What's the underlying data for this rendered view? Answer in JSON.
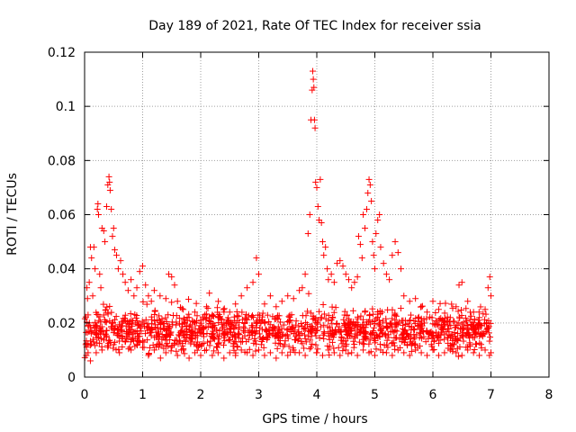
{
  "chart_data": {
    "type": "scatter",
    "title": "Day 189 of 2021, Rate Of TEC Index for receiver ssia",
    "xlabel": "GPS time / hours",
    "ylabel": "ROTI / TECUs",
    "xlim": [
      0,
      8
    ],
    "ylim": [
      0,
      0.12
    ],
    "xticks": [
      "0",
      "1",
      "2",
      "3",
      "4",
      "5",
      "6",
      "7",
      "8"
    ],
    "yticks": [
      "0",
      "0.02",
      "0.04",
      "0.06",
      "0.08",
      "0.1",
      "0.12"
    ],
    "grid": true,
    "marker": "+",
    "color": "#ff0000",
    "series": [
      {
        "name": "ROTI",
        "points": [
          [
            0.02,
            0.012
          ],
          [
            0.04,
            0.033
          ],
          [
            0.05,
            0.029
          ],
          [
            0.06,
            0.009
          ],
          [
            0.08,
            0.035
          ],
          [
            0.1,
            0.048
          ],
          [
            0.12,
            0.044
          ],
          [
            0.14,
            0.03
          ],
          [
            0.16,
            0.048
          ],
          [
            0.18,
            0.04
          ],
          [
            0.2,
            0.018
          ],
          [
            0.22,
            0.062
          ],
          [
            0.23,
            0.064
          ],
          [
            0.24,
            0.06
          ],
          [
            0.26,
            0.038
          ],
          [
            0.28,
            0.033
          ],
          [
            0.3,
            0.055
          ],
          [
            0.33,
            0.054
          ],
          [
            0.35,
            0.05
          ],
          [
            0.38,
            0.063
          ],
          [
            0.4,
            0.071
          ],
          [
            0.42,
            0.074
          ],
          [
            0.43,
            0.072
          ],
          [
            0.44,
            0.069
          ],
          [
            0.46,
            0.062
          ],
          [
            0.48,
            0.052
          ],
          [
            0.5,
            0.055
          ],
          [
            0.52,
            0.047
          ],
          [
            0.55,
            0.045
          ],
          [
            0.58,
            0.04
          ],
          [
            0.62,
            0.043
          ],
          [
            0.66,
            0.038
          ],
          [
            0.7,
            0.035
          ],
          [
            0.75,
            0.032
          ],
          [
            0.8,
            0.036
          ],
          [
            0.85,
            0.03
          ],
          [
            0.9,
            0.033
          ],
          [
            0.95,
            0.039
          ],
          [
            1.0,
            0.041
          ],
          [
            1.05,
            0.034
          ],
          [
            1.1,
            0.03
          ],
          [
            1.15,
            0.028
          ],
          [
            1.2,
            0.032
          ],
          [
            1.3,
            0.03
          ],
          [
            1.4,
            0.029
          ],
          [
            1.45,
            0.038
          ],
          [
            1.5,
            0.037
          ],
          [
            1.55,
            0.034
          ],
          [
            1.6,
            0.028
          ],
          [
            1.7,
            0.025
          ],
          [
            1.8,
            0.022
          ],
          [
            1.9,
            0.024
          ],
          [
            2.0,
            0.021
          ],
          [
            2.1,
            0.026
          ],
          [
            2.15,
            0.031
          ],
          [
            2.2,
            0.023
          ],
          [
            2.3,
            0.022
          ],
          [
            2.4,
            0.02
          ],
          [
            2.5,
            0.024
          ],
          [
            2.6,
            0.027
          ],
          [
            2.7,
            0.03
          ],
          [
            2.8,
            0.033
          ],
          [
            2.9,
            0.035
          ],
          [
            2.96,
            0.044
          ],
          [
            3.0,
            0.038
          ],
          [
            3.1,
            0.027
          ],
          [
            3.2,
            0.03
          ],
          [
            3.3,
            0.026
          ],
          [
            3.4,
            0.028
          ],
          [
            3.5,
            0.03
          ],
          [
            3.6,
            0.029
          ],
          [
            3.7,
            0.032
          ],
          [
            3.75,
            0.033
          ],
          [
            3.8,
            0.038
          ],
          [
            3.85,
            0.053
          ],
          [
            3.88,
            0.06
          ],
          [
            3.9,
            0.095
          ],
          [
            3.92,
            0.106
          ],
          [
            3.93,
            0.113
          ],
          [
            3.94,
            0.11
          ],
          [
            3.95,
            0.107
          ],
          [
            3.96,
            0.095
          ],
          [
            3.97,
            0.092
          ],
          [
            3.98,
            0.072
          ],
          [
            4.0,
            0.07
          ],
          [
            4.02,
            0.063
          ],
          [
            4.04,
            0.058
          ],
          [
            4.06,
            0.073
          ],
          [
            4.08,
            0.057
          ],
          [
            4.1,
            0.05
          ],
          [
            4.12,
            0.045
          ],
          [
            4.15,
            0.048
          ],
          [
            4.18,
            0.04
          ],
          [
            4.2,
            0.036
          ],
          [
            4.25,
            0.038
          ],
          [
            4.3,
            0.035
          ],
          [
            4.35,
            0.042
          ],
          [
            4.4,
            0.043
          ],
          [
            4.45,
            0.041
          ],
          [
            4.5,
            0.038
          ],
          [
            4.55,
            0.036
          ],
          [
            4.6,
            0.033
          ],
          [
            4.65,
            0.035
          ],
          [
            4.7,
            0.037
          ],
          [
            4.72,
            0.052
          ],
          [
            4.75,
            0.049
          ],
          [
            4.78,
            0.044
          ],
          [
            4.8,
            0.06
          ],
          [
            4.83,
            0.055
          ],
          [
            4.86,
            0.062
          ],
          [
            4.88,
            0.068
          ],
          [
            4.9,
            0.073
          ],
          [
            4.92,
            0.071
          ],
          [
            4.94,
            0.065
          ],
          [
            4.96,
            0.05
          ],
          [
            4.98,
            0.045
          ],
          [
            5.0,
            0.04
          ],
          [
            5.02,
            0.053
          ],
          [
            5.05,
            0.058
          ],
          [
            5.08,
            0.06
          ],
          [
            5.1,
            0.048
          ],
          [
            5.15,
            0.042
          ],
          [
            5.2,
            0.038
          ],
          [
            5.25,
            0.036
          ],
          [
            5.3,
            0.045
          ],
          [
            5.35,
            0.05
          ],
          [
            5.4,
            0.046
          ],
          [
            5.45,
            0.04
          ],
          [
            5.5,
            0.03
          ],
          [
            5.6,
            0.028
          ],
          [
            5.7,
            0.029
          ],
          [
            5.8,
            0.026
          ],
          [
            5.9,
            0.024
          ],
          [
            6.0,
            0.028
          ],
          [
            6.1,
            0.025
          ],
          [
            6.2,
            0.02
          ],
          [
            6.3,
            0.022
          ],
          [
            6.4,
            0.026
          ],
          [
            6.45,
            0.034
          ],
          [
            6.5,
            0.035
          ],
          [
            6.6,
            0.028
          ],
          [
            6.7,
            0.024
          ],
          [
            6.8,
            0.022
          ],
          [
            6.9,
            0.025
          ],
          [
            6.95,
            0.033
          ],
          [
            6.98,
            0.037
          ],
          [
            7.0,
            0.03
          ],
          [
            0.03,
            0.008
          ],
          [
            0.1,
            0.006
          ],
          [
            0.2,
            0.009
          ],
          [
            0.3,
            0.01
          ],
          [
            0.4,
            0.011
          ],
          [
            0.5,
            0.012
          ],
          [
            0.6,
            0.009
          ],
          [
            0.7,
            0.013
          ],
          [
            0.8,
            0.01
          ],
          [
            0.9,
            0.012
          ],
          [
            1.0,
            0.011
          ],
          [
            1.1,
            0.008
          ],
          [
            1.2,
            0.01
          ],
          [
            1.3,
            0.012
          ],
          [
            1.4,
            0.009
          ],
          [
            1.5,
            0.011
          ],
          [
            1.6,
            0.008
          ],
          [
            1.7,
            0.01
          ],
          [
            1.8,
            0.007
          ],
          [
            1.9,
            0.009
          ],
          [
            2.0,
            0.008
          ],
          [
            2.1,
            0.01
          ],
          [
            2.2,
            0.008
          ],
          [
            2.3,
            0.009
          ],
          [
            2.4,
            0.007
          ],
          [
            2.5,
            0.009
          ],
          [
            2.6,
            0.008
          ],
          [
            2.7,
            0.01
          ],
          [
            2.8,
            0.009
          ],
          [
            2.9,
            0.008
          ],
          [
            3.0,
            0.01
          ],
          [
            3.1,
            0.008
          ],
          [
            3.2,
            0.009
          ],
          [
            3.3,
            0.007
          ],
          [
            3.4,
            0.009
          ],
          [
            3.5,
            0.008
          ],
          [
            3.6,
            0.01
          ],
          [
            3.7,
            0.009
          ],
          [
            3.8,
            0.008
          ],
          [
            3.9,
            0.011
          ],
          [
            4.0,
            0.009
          ],
          [
            4.1,
            0.008
          ],
          [
            4.2,
            0.01
          ],
          [
            4.3,
            0.009
          ],
          [
            4.4,
            0.008
          ],
          [
            4.5,
            0.01
          ],
          [
            4.6,
            0.009
          ],
          [
            4.7,
            0.008
          ],
          [
            4.8,
            0.01
          ],
          [
            4.9,
            0.009
          ],
          [
            5.0,
            0.008
          ],
          [
            5.1,
            0.01
          ],
          [
            5.2,
            0.009
          ],
          [
            5.3,
            0.008
          ],
          [
            5.4,
            0.01
          ],
          [
            5.5,
            0.009
          ],
          [
            5.6,
            0.008
          ],
          [
            5.7,
            0.01
          ],
          [
            5.8,
            0.009
          ],
          [
            5.9,
            0.008
          ],
          [
            6.0,
            0.01
          ],
          [
            6.1,
            0.008
          ],
          [
            6.2,
            0.009
          ],
          [
            6.3,
            0.01
          ],
          [
            6.4,
            0.009
          ],
          [
            6.5,
            0.008
          ],
          [
            6.6,
            0.01
          ],
          [
            6.7,
            0.009
          ],
          [
            6.8,
            0.008
          ],
          [
            6.9,
            0.01
          ],
          [
            7.0,
            0.009
          ]
        ],
        "dense_band": {
          "x_range": [
            0.0,
            7.0
          ],
          "y_range": [
            0.006,
            0.028
          ],
          "center": 0.016,
          "count": 1300
        }
      }
    ]
  }
}
